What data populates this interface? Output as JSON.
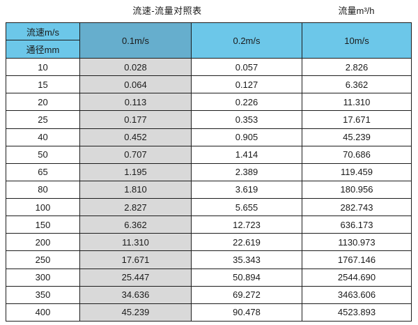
{
  "chart_data": {
    "type": "table",
    "title": "流速-流量对照表",
    "unit_label": "流量m³/h",
    "corner": {
      "top_label": "流速m/s",
      "bottom_label": "通径mm"
    },
    "velocity_columns": [
      "0.1m/s",
      "0.2m/s",
      "10m/s"
    ],
    "rows": [
      {
        "diameter_mm": "10",
        "flows_m3h": [
          "0.028",
          "0.057",
          "2.826"
        ]
      },
      {
        "diameter_mm": "15",
        "flows_m3h": [
          "0.064",
          "0.127",
          "6.362"
        ]
      },
      {
        "diameter_mm": "20",
        "flows_m3h": [
          "0.113",
          "0.226",
          "11.310"
        ]
      },
      {
        "diameter_mm": "25",
        "flows_m3h": [
          "0.177",
          "0.353",
          "17.671"
        ]
      },
      {
        "diameter_mm": "40",
        "flows_m3h": [
          "0.452",
          "0.905",
          "45.239"
        ]
      },
      {
        "diameter_mm": "50",
        "flows_m3h": [
          "0.707",
          "1.414",
          "70.686"
        ]
      },
      {
        "diameter_mm": "65",
        "flows_m3h": [
          "1.195",
          "2.389",
          "119.459"
        ]
      },
      {
        "diameter_mm": "80",
        "flows_m3h": [
          "1.810",
          "3.619",
          "180.956"
        ]
      },
      {
        "diameter_mm": "100",
        "flows_m3h": [
          "2.827",
          "5.655",
          "282.743"
        ]
      },
      {
        "diameter_mm": "150",
        "flows_m3h": [
          "6.362",
          "12.723",
          "636.173"
        ]
      },
      {
        "diameter_mm": "200",
        "flows_m3h": [
          "11.310",
          "22.619",
          "1130.973"
        ]
      },
      {
        "diameter_mm": "250",
        "flows_m3h": [
          "17.671",
          "35.343",
          "1767.146"
        ]
      },
      {
        "diameter_mm": "300",
        "flows_m3h": [
          "25.447",
          "50.894",
          "2544.690"
        ]
      },
      {
        "diameter_mm": "350",
        "flows_m3h": [
          "34.636",
          "69.272",
          "3463.606"
        ]
      },
      {
        "diameter_mm": "400",
        "flows_m3h": [
          "45.239",
          "90.478",
          "4523.893"
        ]
      }
    ]
  },
  "colors": {
    "header_blue": "#6cc7e9",
    "header_blue_dark": "#66aecd",
    "shaded_column_gray": "#d9d9d9",
    "border": "#1c1c1c",
    "text": "#1a1a1a"
  }
}
